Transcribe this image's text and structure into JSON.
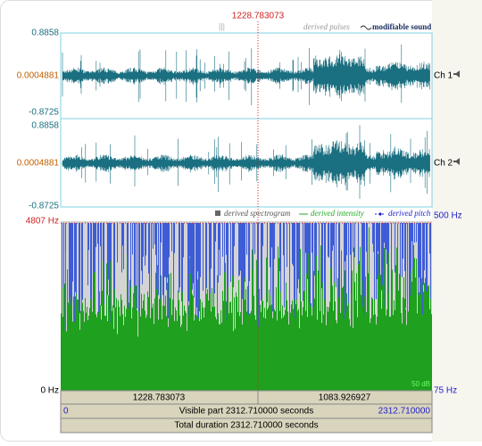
{
  "cursor_time": "1228.783073",
  "legend_top": {
    "pulses": "derived pulses",
    "sound": "modifiable sound"
  },
  "channels": [
    {
      "max": "0.8858",
      "mid": "0.0004881",
      "min": "-0.8725",
      "label": "Ch 1"
    },
    {
      "max": "0.8858",
      "mid": "0.0004881",
      "min": "-0.8725",
      "label": "Ch 2"
    }
  ],
  "spectrogram": {
    "max_freq": "4807 Hz",
    "min_freq": "0 Hz",
    "legend": {
      "spectrogram": "derived spectrogram",
      "intensity": "derived intensity",
      "pitch": "derived pitch"
    },
    "pitch_max": "500 Hz",
    "pitch_min": "75 Hz",
    "intensity": "50 dB"
  },
  "bars": {
    "left": "1228.783073",
    "right": "1083.926927",
    "visible_start": "0",
    "visible": "Visible part 2312.710000 seconds",
    "visible_end": "2312.710000",
    "total": "Total duration 2312.710000 seconds"
  }
}
